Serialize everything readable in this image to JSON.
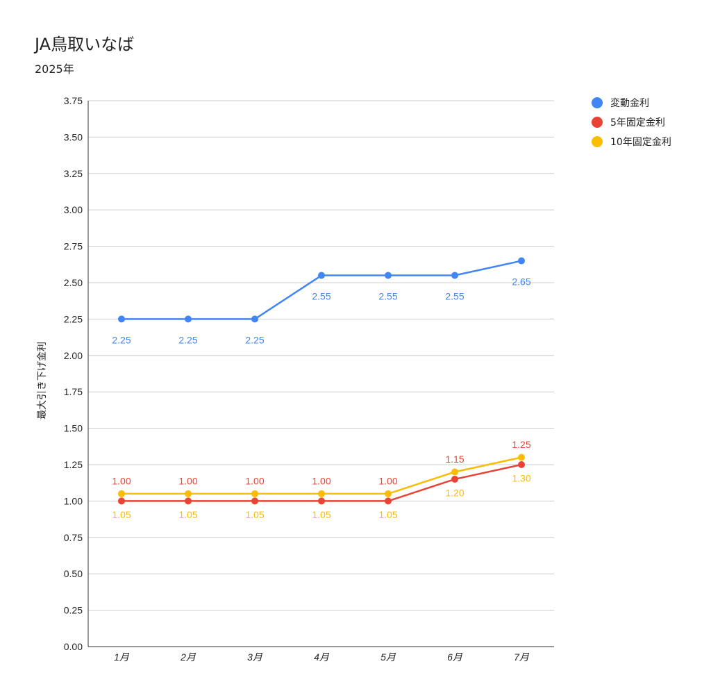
{
  "chart_data": {
    "type": "line",
    "title": "JA鳥取いなば",
    "subtitle": "2025年",
    "xlabel": "",
    "ylabel": "最大引き下げ金利",
    "categories": [
      "1月",
      "2月",
      "3月",
      "4月",
      "5月",
      "6月",
      "7月"
    ],
    "ylim": [
      0,
      3.75
    ],
    "yticks": [
      "0.00",
      "0.25",
      "0.50",
      "0.75",
      "1.00",
      "1.25",
      "1.50",
      "1.75",
      "2.00",
      "2.25",
      "2.50",
      "2.75",
      "3.00",
      "3.25",
      "3.50",
      "3.75"
    ],
    "grid": true,
    "legend_position": "top-right",
    "series": [
      {
        "name": "変動金利",
        "color": "#4285F4",
        "values": [
          2.25,
          2.25,
          2.25,
          2.55,
          2.55,
          2.55,
          2.65
        ],
        "labels": [
          "2.25",
          "2.25",
          "2.25",
          "2.55",
          "2.55",
          "2.55",
          "2.65"
        ]
      },
      {
        "name": "5年固定金利",
        "color": "#EA4335",
        "values": [
          1.0,
          1.0,
          1.0,
          1.0,
          1.0,
          1.15,
          1.25
        ],
        "labels": [
          "1.00",
          "1.00",
          "1.00",
          "1.00",
          "1.00",
          "1.15",
          "1.25"
        ]
      },
      {
        "name": "10年固定金利",
        "color": "#FBBC04",
        "values": [
          1.05,
          1.05,
          1.05,
          1.05,
          1.05,
          1.2,
          1.3
        ],
        "labels": [
          "1.05",
          "1.05",
          "1.05",
          "1.05",
          "1.05",
          "1.20",
          "1.30"
        ]
      }
    ]
  }
}
